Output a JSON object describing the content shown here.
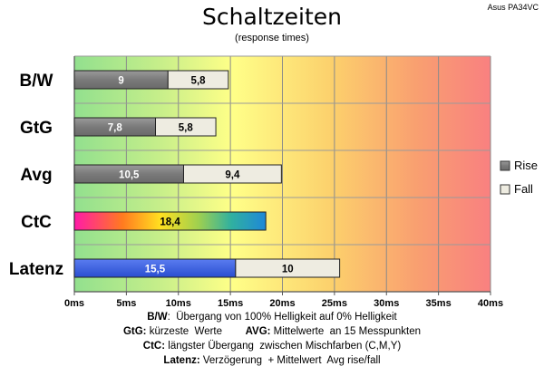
{
  "chart_data": {
    "type": "bar",
    "orientation": "horizontal",
    "stacked": true,
    "title": "Schaltzeiten",
    "subtitle": "(response times)",
    "model": "Asus PA34VC",
    "categories": [
      "B/W",
      "GtG",
      "Avg",
      "CtC",
      "Latenz"
    ],
    "series": [
      {
        "name": "Rise",
        "color": "#808080",
        "values": [
          9,
          7.8,
          10.5,
          18.4,
          15.5
        ],
        "labels": [
          "9",
          "7,8",
          "10,5",
          "18,4",
          "15,5"
        ]
      },
      {
        "name": "Fall",
        "color": "#eeece1",
        "values": [
          5.8,
          5.8,
          9.4,
          null,
          10
        ],
        "labels": [
          "5,8",
          "5,8",
          "9,4",
          "",
          "10"
        ]
      }
    ],
    "special_fills": {
      "CtC": "multicolor-gradient",
      "Latenz": "#3a5fe0"
    },
    "xlim": [
      0,
      40
    ],
    "xticks": [
      "0ms",
      "5ms",
      "10ms",
      "15ms",
      "20ms",
      "25ms",
      "30ms",
      "35ms",
      "40ms"
    ],
    "xtick_values": [
      0,
      5,
      10,
      15,
      20,
      25,
      30,
      35,
      40
    ],
    "grid": true,
    "legend_position": "right",
    "background": "horizontal gradient green-yellow-orange-red"
  },
  "notes": [
    {
      "k": "B/W",
      "v": ":  Übergang von 100% Helligkeit auf 0% Helligkeit"
    },
    {
      "k": "GtG:",
      "v": " kürzeste  Werte        ",
      "k2": "AVG:",
      "v2": " Mittelwerte  an 15 Messpunkten"
    },
    {
      "k": "CtC:",
      "v": " längster Übergang  zwischen Mischfarben (C,M,Y)"
    },
    {
      "k": "Latenz:",
      "v": " Verzögerung  + Mittelwert  Avg rise/fall"
    }
  ]
}
